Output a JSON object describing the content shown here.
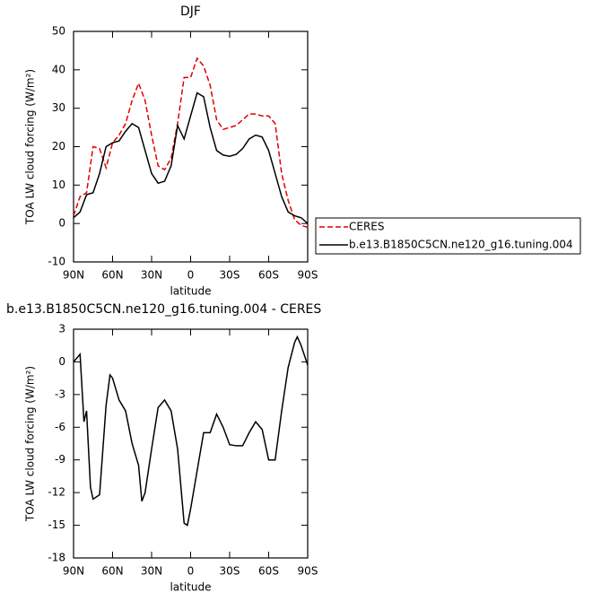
{
  "chart_data": [
    {
      "type": "line",
      "title": "DJF",
      "x_label": "latitude",
      "y_label": "TOA LW cloud forcing (W/m²)",
      "x": [
        90,
        85,
        80,
        75,
        70,
        65,
        60,
        55,
        50,
        45,
        40,
        35,
        30,
        25,
        20,
        15,
        10,
        5,
        0,
        -5,
        -10,
        -15,
        -20,
        -25,
        -30,
        -35,
        -40,
        -45,
        -50,
        -55,
        -60,
        -65,
        -70,
        -75,
        -80,
        -85,
        -90
      ],
      "series": [
        {
          "name": "CERES",
          "color": "#e00000",
          "dash": true,
          "values": [
            2,
            7,
            8,
            20,
            19.5,
            14.5,
            21,
            23,
            26,
            32,
            36.5,
            32,
            23,
            15,
            14,
            17,
            26,
            38,
            38,
            43,
            41,
            36,
            27,
            24.5,
            25,
            25.5,
            27,
            28.5,
            28.5,
            28,
            28,
            26,
            13,
            6,
            1,
            -0.5,
            -1
          ]
        },
        {
          "name": "b.e13.B1850C5CN.ne120_g16.tuning.004",
          "color": "#000000",
          "dash": false,
          "values": [
            1.5,
            3,
            7.5,
            8,
            13,
            20,
            21,
            21.5,
            24,
            26,
            25,
            19,
            13,
            10.5,
            11,
            15,
            25.5,
            22,
            28,
            34,
            33,
            25,
            19,
            17.8,
            17.5,
            18,
            19.5,
            22,
            23,
            22.5,
            19,
            13,
            7,
            3,
            2,
            1.5,
            0
          ]
        }
      ],
      "xlim": [
        90,
        -90
      ],
      "xticks": [
        {
          "value": 90,
          "label": "90N"
        },
        {
          "value": 60,
          "label": "60N"
        },
        {
          "value": 30,
          "label": "30N"
        },
        0,
        {
          "value": -30,
          "label": "30S"
        },
        {
          "value": -60,
          "label": "60S"
        },
        {
          "value": -90,
          "label": "90S"
        }
      ],
      "ylim": [
        -10,
        50
      ],
      "yticks": [
        -10,
        0,
        10,
        20,
        30,
        40,
        50
      ],
      "legend": "outside-right"
    },
    {
      "type": "line",
      "title": "b.e13.B1850C5CN.ne120_g16.tuning.004 - CERES",
      "x_label": "latitude",
      "y_label": "TOA LW cloud forcing (W/m²)",
      "x": [
        90,
        85,
        82,
        80,
        77,
        75,
        70,
        65,
        62,
        60,
        55,
        50,
        45,
        40,
        37.5,
        35,
        30,
        25,
        20,
        15,
        10,
        5,
        2.5,
        0,
        -5,
        -10,
        -15,
        -20,
        -25,
        -30,
        -35,
        -40,
        -45,
        -50,
        -55,
        -60,
        -65,
        -70,
        -75,
        -80,
        -82,
        -85,
        -90
      ],
      "values": [
        0,
        0.7,
        -5.5,
        -4.5,
        -11.5,
        -12.6,
        -12.2,
        -4,
        -1.2,
        -1.5,
        -3.5,
        -4.5,
        -7.5,
        -9.5,
        -12.8,
        -12,
        -8,
        -4.2,
        -3.5,
        -4.5,
        -8,
        -14.8,
        -15,
        -13.5,
        -10,
        -6.5,
        -6.5,
        -4.8,
        -6,
        -7.6,
        -7.7,
        -7.7,
        -6.5,
        -5.5,
        -6.2,
        -9,
        -9,
        -4.5,
        -0.5,
        1.8,
        2.3,
        1.5,
        -0.3
      ],
      "color": "#000000",
      "xlim": [
        90,
        -90
      ],
      "xticks": [
        {
          "value": 90,
          "label": "90N"
        },
        {
          "value": 60,
          "label": "60N"
        },
        {
          "value": 30,
          "label": "30N"
        },
        0,
        {
          "value": -30,
          "label": "30S"
        },
        {
          "value": -60,
          "label": "60S"
        },
        {
          "value": -90,
          "label": "90S"
        }
      ],
      "ylim": [
        -18,
        3
      ],
      "yticks": [
        -18,
        -15,
        -12,
        -9,
        -6,
        -3,
        0,
        3
      ]
    }
  ]
}
